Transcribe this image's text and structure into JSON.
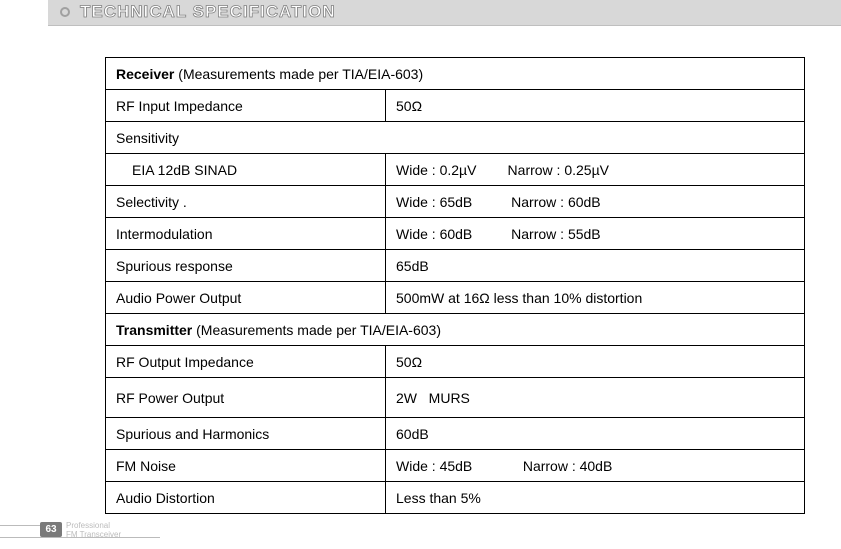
{
  "header": {
    "title": "TECHNICAL SPECIFICATION"
  },
  "table": {
    "receiver_header_bold": "Receiver",
    "receiver_header_rest": " (Measurements made per TIA/EIA-603)",
    "rows_receiver": [
      {
        "label": "RF Input Impedance",
        "value": "50Ω",
        "indent": false
      },
      {
        "label": "Sensitivity",
        "value": "",
        "span": true,
        "indent": false
      },
      {
        "label": "EIA 12dB SINAD",
        "value": "Wide : 0.2µV        Narrow : 0.25µV",
        "indent": true
      },
      {
        "label": "Selectivity .",
        "value": "Wide : 65dB          Narrow : 60dB",
        "indent": false
      },
      {
        "label": "Intermodulation",
        "value": "Wide : 60dB          Narrow : 55dB",
        "indent": false
      },
      {
        "label": "Spurious response",
        "value": "65dB",
        "indent": false
      },
      {
        "label": "Audio Power Output",
        "value": "500mW at 16Ω less than 10% distortion",
        "indent": false
      }
    ],
    "transmitter_header_bold": "Transmitter",
    "transmitter_header_rest": " (Measurements made per TIA/EIA-603)",
    "rows_transmitter": [
      {
        "label": "RF Output Impedance",
        "value": "50Ω"
      },
      {
        "label": "RF Power Output",
        "value": "2W   MURS",
        "tall": true
      },
      {
        "label": "Spurious and Harmonics",
        "value": "60dB"
      },
      {
        "label": "FM Noise",
        "value": "Wide : 45dB             Narrow : 40dB"
      },
      {
        "label": "Audio Distortion",
        "value": "Less than 5%"
      }
    ]
  },
  "footer": {
    "page_number": "63",
    "line1": "Professional",
    "line2": "FM Transceiver"
  }
}
